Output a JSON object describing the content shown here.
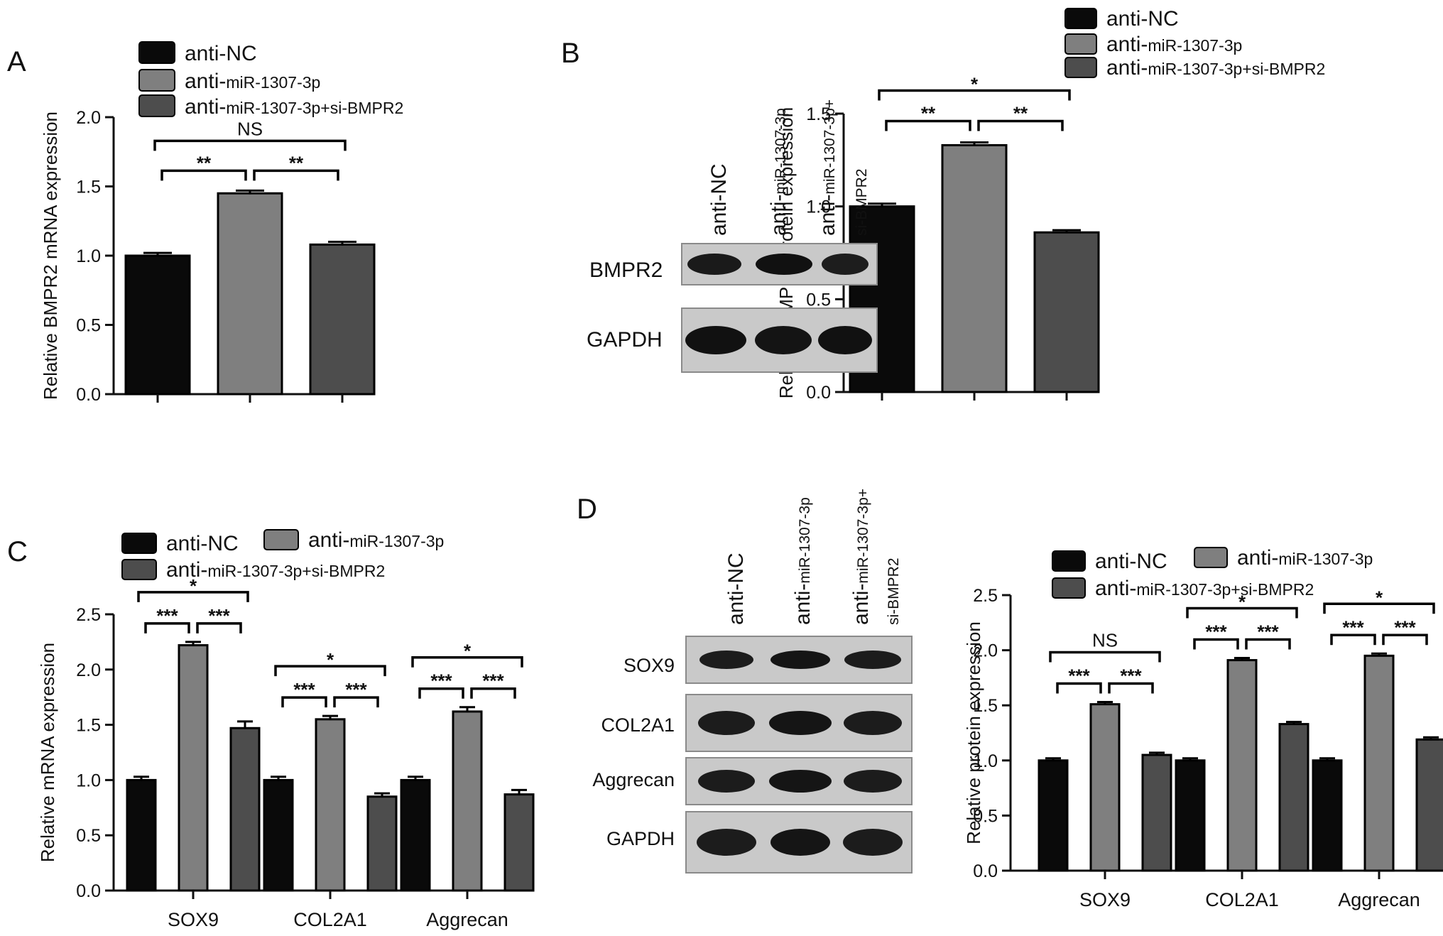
{
  "colors": {
    "anti_nc": "#0a0a0a",
    "anti_mir": "#7f7f7f",
    "anti_mir_si": "#4d4d4d",
    "axis": "#111111"
  },
  "legend_prefix": "anti-",
  "legend_suffix": {
    "anti_nc": "NC",
    "anti_mir": "miR-1307-3p",
    "anti_mir_si": "miR-1307-3p+si-BMPR2"
  },
  "lanes": {
    "anti_nc": "anti-NC",
    "anti_mir_prefix": "anti-",
    "anti_mir_small": "miR-1307-3p",
    "anti_mir_si_prefix": "anti-",
    "anti_mir_si_small_1": "miR-1307-3p+",
    "anti_mir_si_small_2": "si-BMPR2"
  },
  "blots": {
    "B": [
      "BMPR2",
      "GAPDH"
    ],
    "D": [
      "SOX9",
      "COL2A1",
      "Aggrecan",
      "GAPDH"
    ]
  },
  "chart_data": [
    {
      "panel": "A",
      "type": "bar",
      "ylabel": "Relative BMPR2 mRNA expression",
      "ylim": [
        0,
        2.0
      ],
      "yticks": [
        "0.0",
        "0.5",
        "1.0",
        "1.5",
        "2.0"
      ],
      "categories": [
        ""
      ],
      "series": [
        {
          "name": "anti-NC",
          "values": [
            1.0
          ],
          "errors": [
            0.02
          ]
        },
        {
          "name": "anti-miR-1307-3p",
          "values": [
            1.45
          ],
          "errors": [
            0.02
          ]
        },
        {
          "name": "anti-miR-1307-3p+si-BMPR2",
          "values": [
            1.08
          ],
          "errors": [
            0.02
          ]
        }
      ],
      "significance": [
        {
          "from": 0,
          "to": 1,
          "label": "**"
        },
        {
          "from": 1,
          "to": 2,
          "label": "**"
        },
        {
          "from": 0,
          "to": 2,
          "label": "NS"
        }
      ],
      "legend": "top-left"
    },
    {
      "panel": "B",
      "type": "bar",
      "ylabel": "Relative BMPR2 protein expression",
      "ylim": [
        0,
        1.5
      ],
      "yticks": [
        "0.0",
        "0.5",
        "1.0",
        "1.5"
      ],
      "categories": [
        ""
      ],
      "series": [
        {
          "name": "anti-NC",
          "values": [
            1.0
          ],
          "errors": [
            0.015
          ]
        },
        {
          "name": "anti-miR-1307-3p",
          "values": [
            1.33
          ],
          "errors": [
            0.015
          ]
        },
        {
          "name": "anti-miR-1307-3p+si-BMPR2",
          "values": [
            0.86
          ],
          "errors": [
            0.012
          ]
        }
      ],
      "significance": [
        {
          "from": 0,
          "to": 1,
          "label": "**"
        },
        {
          "from": 1,
          "to": 2,
          "label": "**"
        },
        {
          "from": 0,
          "to": 2,
          "label": "*"
        }
      ],
      "legend": "top"
    },
    {
      "panel": "C",
      "type": "bar",
      "ylabel": "Relative mRNA expression",
      "ylim": [
        0,
        2.5
      ],
      "yticks": [
        "0.0",
        "0.5",
        "1.0",
        "1.5",
        "2.0",
        "2.5"
      ],
      "categories": [
        "SOX9",
        "COL2A1",
        "Aggrecan"
      ],
      "series": [
        {
          "name": "anti-NC",
          "values": [
            1.0,
            1.0,
            1.0
          ],
          "errors": [
            0.03,
            0.03,
            0.03
          ]
        },
        {
          "name": "anti-miR-1307-3p",
          "values": [
            2.22,
            1.55,
            1.62
          ],
          "errors": [
            0.03,
            0.03,
            0.04
          ]
        },
        {
          "name": "anti-miR-1307-3p+si-BMPR2",
          "values": [
            1.47,
            0.85,
            0.87
          ],
          "errors": [
            0.06,
            0.03,
            0.04
          ]
        }
      ],
      "significance": [
        [
          {
            "from": 0,
            "to": 1,
            "label": "***"
          },
          {
            "from": 1,
            "to": 2,
            "label": "***"
          },
          {
            "from": 0,
            "to": 2,
            "label": "*"
          }
        ],
        [
          {
            "from": 0,
            "to": 1,
            "label": "***"
          },
          {
            "from": 1,
            "to": 2,
            "label": "***"
          },
          {
            "from": 0,
            "to": 2,
            "label": "*"
          }
        ],
        [
          {
            "from": 0,
            "to": 1,
            "label": "***"
          },
          {
            "from": 1,
            "to": 2,
            "label": "***"
          },
          {
            "from": 0,
            "to": 2,
            "label": "*"
          }
        ]
      ],
      "legend": "top"
    },
    {
      "panel": "D",
      "type": "bar",
      "ylabel": "Relative protein expression",
      "ylim": [
        0,
        2.5
      ],
      "yticks": [
        "0.0",
        "0.5",
        "1.0",
        "1.5",
        "2.0",
        "2.5"
      ],
      "categories": [
        "SOX9",
        "COL2A1",
        "Aggrecan"
      ],
      "series": [
        {
          "name": "anti-NC",
          "values": [
            1.0,
            1.0,
            1.0
          ],
          "errors": [
            0.02,
            0.02,
            0.02
          ]
        },
        {
          "name": "anti-miR-1307-3p",
          "values": [
            1.51,
            1.91,
            1.95
          ],
          "errors": [
            0.02,
            0.02,
            0.02
          ]
        },
        {
          "name": "anti-miR-1307-3p+si-BMPR2",
          "values": [
            1.05,
            1.33,
            1.19
          ],
          "errors": [
            0.02,
            0.02,
            0.02
          ]
        }
      ],
      "significance": [
        [
          {
            "from": 0,
            "to": 1,
            "label": "***"
          },
          {
            "from": 1,
            "to": 2,
            "label": "***"
          },
          {
            "from": 0,
            "to": 2,
            "label": "NS"
          }
        ],
        [
          {
            "from": 0,
            "to": 1,
            "label": "***"
          },
          {
            "from": 1,
            "to": 2,
            "label": "***"
          },
          {
            "from": 0,
            "to": 2,
            "label": "*"
          }
        ],
        [
          {
            "from": 0,
            "to": 1,
            "label": "***"
          },
          {
            "from": 1,
            "to": 2,
            "label": "***"
          },
          {
            "from": 0,
            "to": 2,
            "label": "*"
          }
        ]
      ],
      "legend": "top"
    }
  ]
}
